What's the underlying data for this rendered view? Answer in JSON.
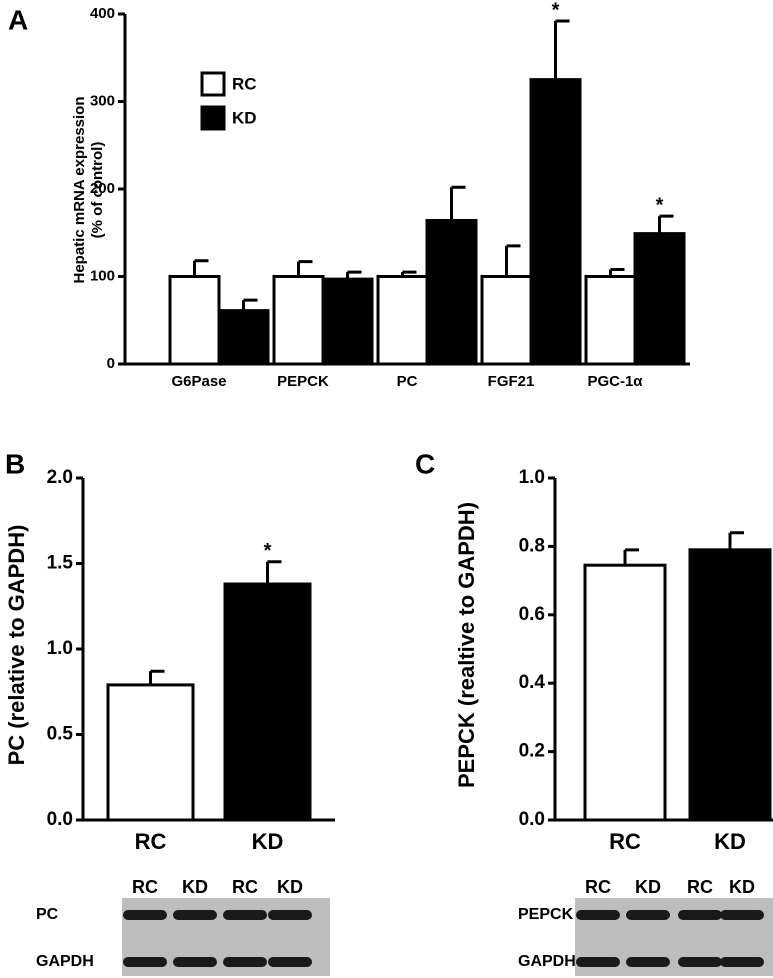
{
  "chart_data": [
    {
      "type": "bar",
      "panel": "A",
      "ylabel": [
        "Hepatic mRNA expression",
        "(% of control)"
      ],
      "categories": [
        "G6Pase",
        "PEPCK",
        "PC",
        "FGF21",
        "PGC-1α"
      ],
      "series": [
        {
          "name": "RC",
          "color": "#ffffff",
          "values": [
            100,
            100,
            100,
            100,
            100
          ],
          "errors": [
            18,
            17,
            5,
            35,
            8
          ]
        },
        {
          "name": "KD",
          "color": "#000000",
          "values": [
            61,
            97,
            164,
            325,
            149
          ],
          "errors": [
            12,
            8,
            38,
            67,
            20
          ],
          "significance": [
            null,
            null,
            null,
            "*",
            "*"
          ]
        }
      ],
      "ylim": [
        0,
        400
      ],
      "yticks": [
        0,
        100,
        200,
        300,
        400
      ]
    },
    {
      "type": "bar",
      "panel": "B",
      "ylabel": [
        "PC (relative to GAPDH)"
      ],
      "categories": [
        "RC",
        "KD"
      ],
      "values": [
        0.79,
        1.38
      ],
      "errors": [
        0.08,
        0.13
      ],
      "colors": [
        "#ffffff",
        "#000000"
      ],
      "significance": [
        null,
        "*"
      ],
      "ylim": [
        0,
        2
      ],
      "yticks": [
        {
          "value": 0,
          "label": "0.0"
        },
        {
          "value": 0.5,
          "label": "0.5"
        },
        {
          "value": 1,
          "label": "1.0"
        },
        {
          "value": 1.5,
          "label": "1.5"
        },
        {
          "value": 2,
          "label": "2.0"
        }
      ],
      "blot": {
        "lanes": [
          "RC",
          "KD",
          "RC",
          "KD"
        ],
        "rows": [
          "PC",
          "GAPDH"
        ]
      }
    },
    {
      "type": "bar",
      "panel": "C",
      "ylabel": [
        "PEPCK (realtive to GAPDH)"
      ],
      "categories": [
        "RC",
        "KD"
      ],
      "values": [
        0.745,
        0.79
      ],
      "errors": [
        0.045,
        0.05
      ],
      "colors": [
        "#ffffff",
        "#000000"
      ],
      "ylim": [
        0,
        1
      ],
      "yticks": [
        {
          "value": 0,
          "label": "0.0"
        },
        {
          "value": 0.2,
          "label": "0.2"
        },
        {
          "value": 0.4,
          "label": "0.4"
        },
        {
          "value": 0.6,
          "label": "0.6"
        },
        {
          "value": 0.8,
          "label": "0.8"
        },
        {
          "value": 1,
          "label": "1.0"
        }
      ],
      "blot": {
        "lanes": [
          "RC",
          "KD",
          "RC",
          "KD"
        ],
        "rows": [
          "PEPCK",
          "GAPDH"
        ]
      }
    }
  ]
}
